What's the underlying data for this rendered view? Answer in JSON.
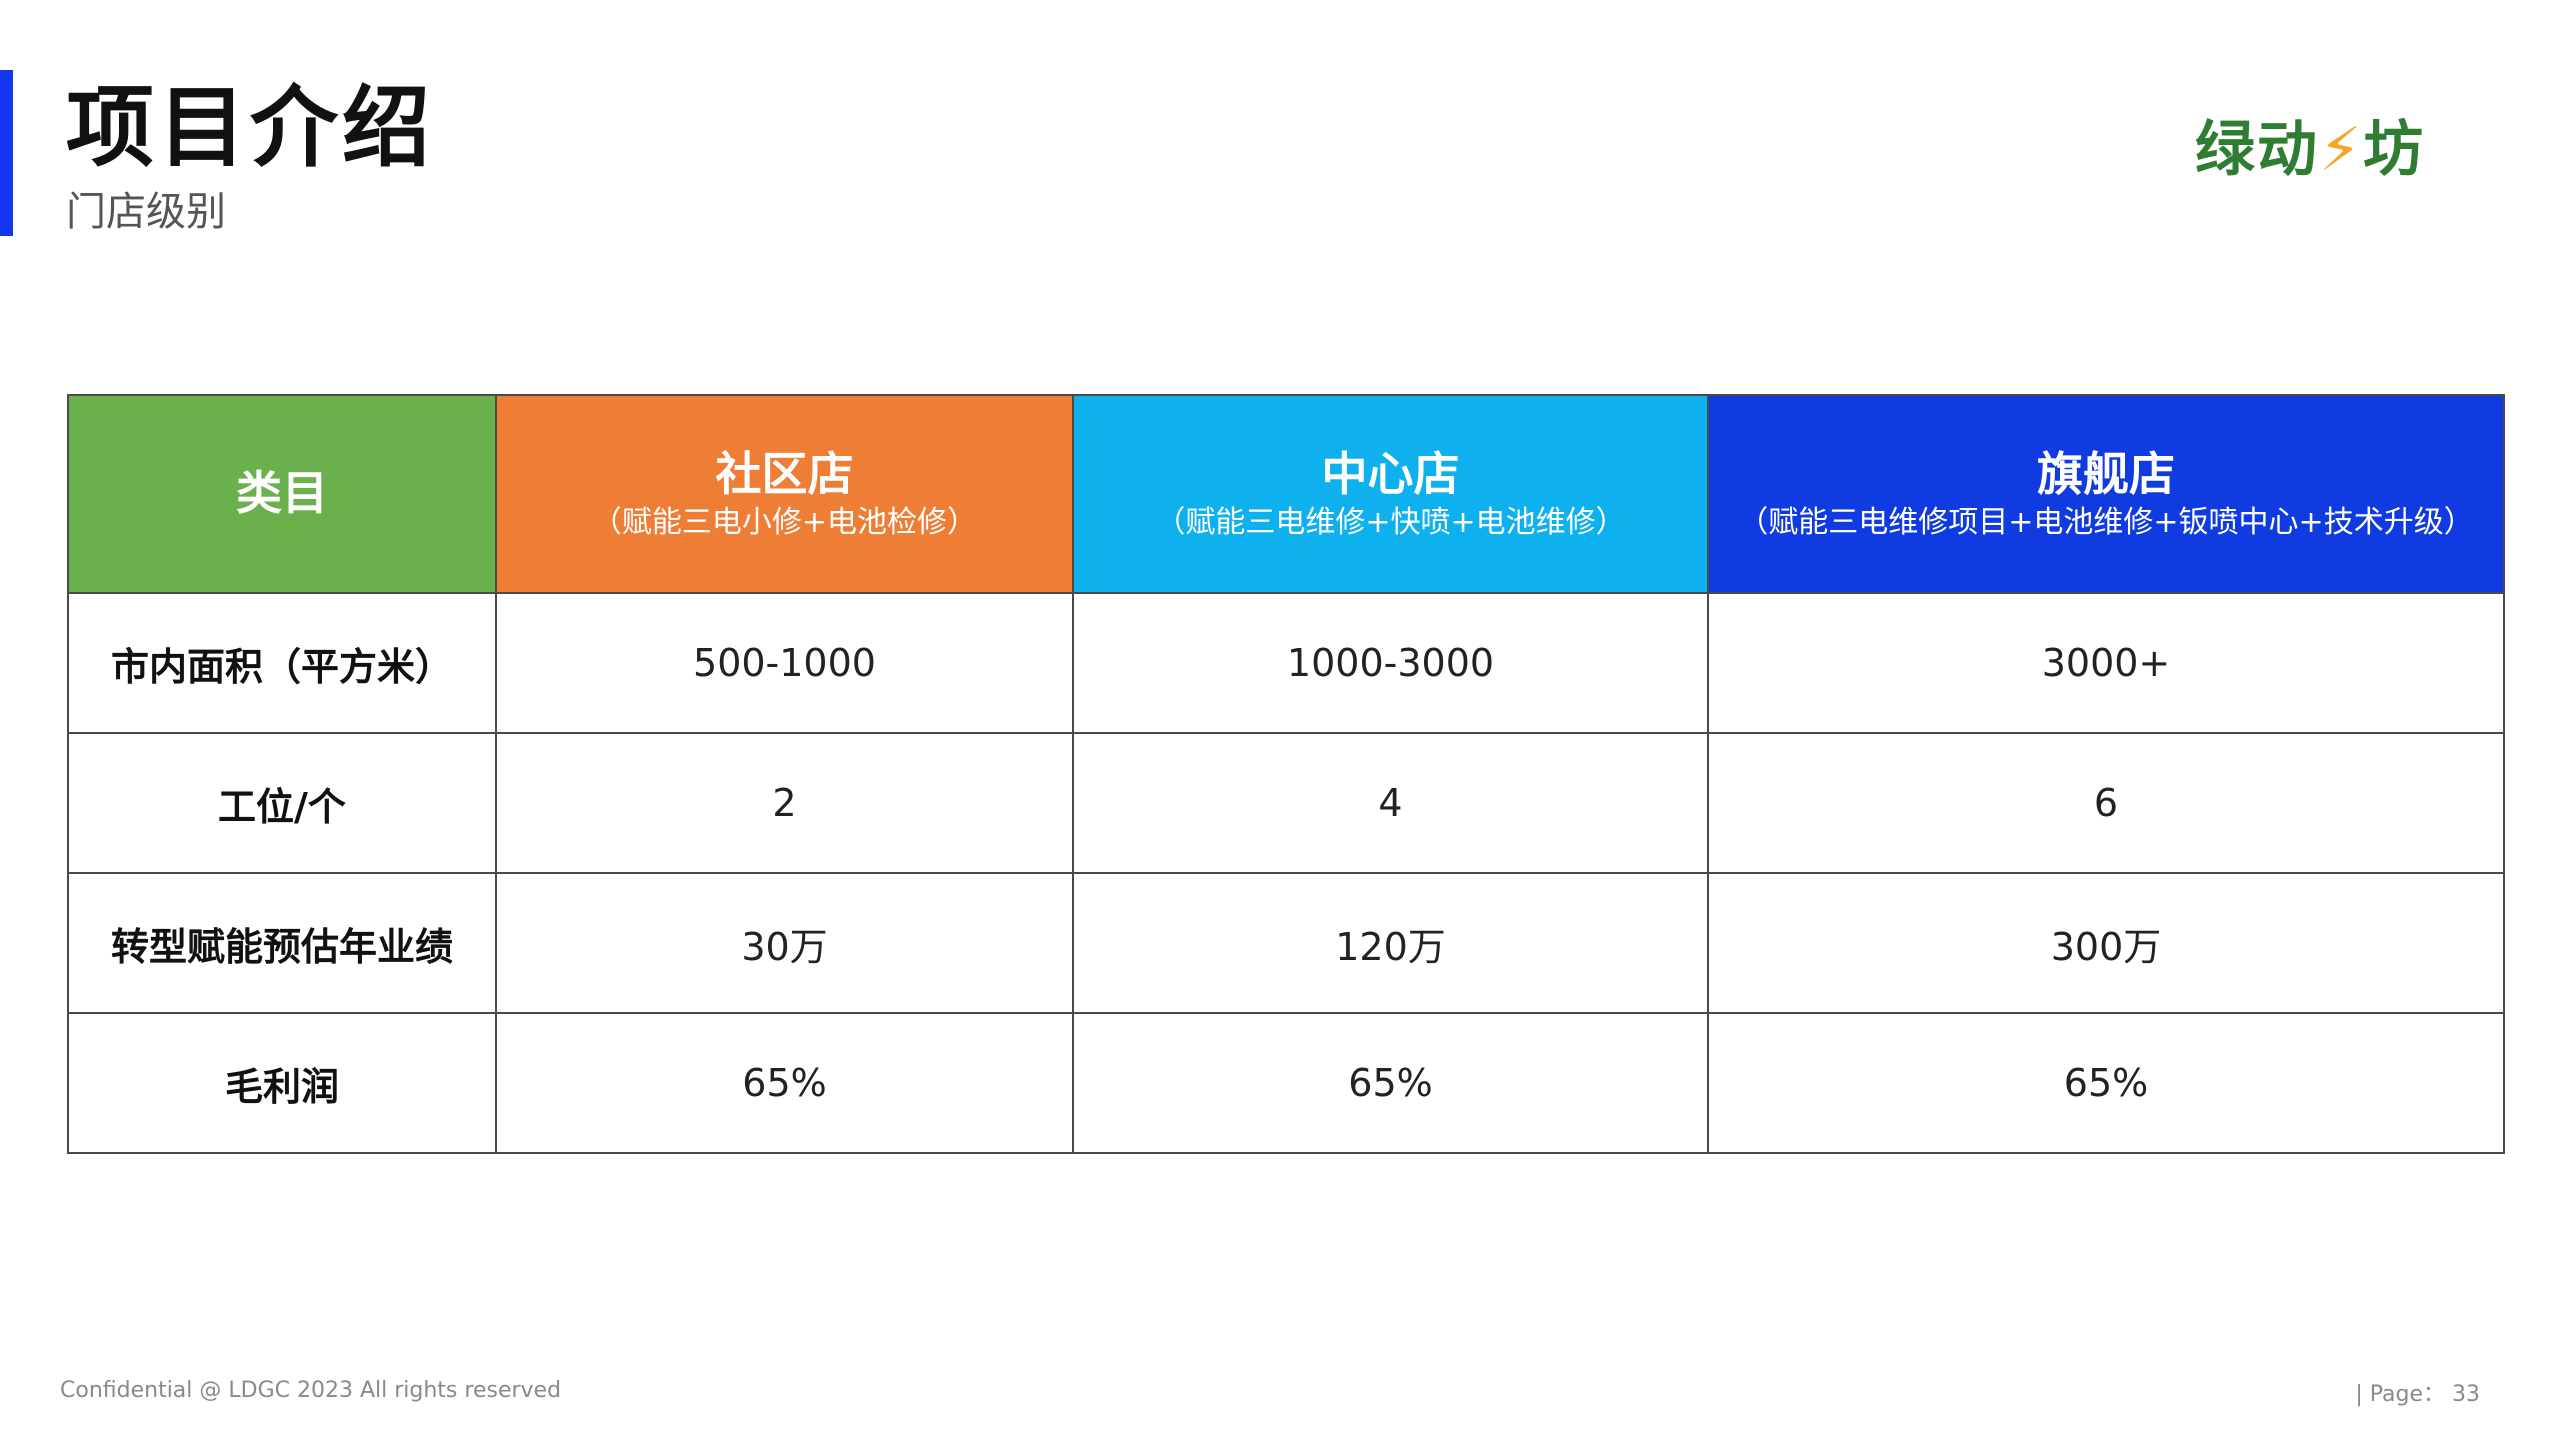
{
  "header": {
    "title": "项目介绍",
    "subtitle": "门店级别",
    "logo_text_1": "绿动",
    "logo_bolt": "⚡",
    "logo_text_2": "坊"
  },
  "table": {
    "header": {
      "category": "类目",
      "columns": [
        {
          "name": "社区店",
          "desc": "（赋能三电小修+电池检修）"
        },
        {
          "name": "中心店",
          "desc": "（赋能三电维修+快喷+电池维修）"
        },
        {
          "name": "旗舰店",
          "desc": "（赋能三电维修项目+电池维修+钣喷中心+技术升级）"
        }
      ]
    },
    "rows": [
      {
        "label": "市内面积（平方米）",
        "values": [
          "500-1000",
          "1000-3000",
          "3000+"
        ]
      },
      {
        "label": "工位/个",
        "values": [
          "2",
          "4",
          "6"
        ]
      },
      {
        "label": "转型赋能预估年业绩",
        "values": [
          "30万",
          "120万",
          "300万"
        ]
      },
      {
        "label": "毛利润",
        "values": [
          "65%",
          "65%",
          "65%"
        ]
      }
    ]
  },
  "footer": {
    "confidential": "Confidential @ LDGC 2023  All rights reserved",
    "page_label": "| Page：",
    "page_number": "33"
  },
  "colors": {
    "accent_bar": "#1438f0",
    "category_header": "#6ab04c",
    "community_header": "#ee7e35",
    "center_header": "#0eb0ee",
    "flagship_header": "#0f3be0",
    "logo_green": "#2f7d32",
    "logo_bolt": "#f6a623"
  }
}
